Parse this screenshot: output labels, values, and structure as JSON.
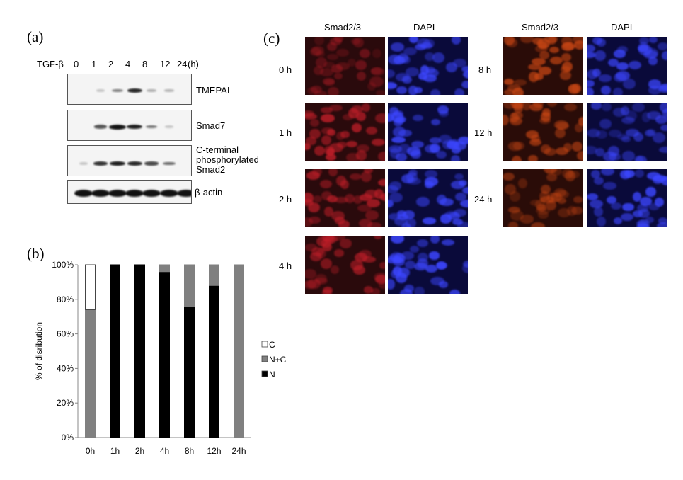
{
  "panel_a": {
    "label": "(a)",
    "treatment_label": "TGF-β",
    "timepoints": [
      "0",
      "1",
      "2",
      "4",
      "8",
      "12",
      "24"
    ],
    "unit": "(h)",
    "blots": [
      {
        "name": "TMEPAI",
        "lines": [
          "TMEPAI"
        ],
        "intensity": [
          0,
          0.05,
          0.35,
          0.75,
          0.15,
          0.12,
          0
        ]
      },
      {
        "name": "Smad7",
        "lines": [
          "Smad7"
        ],
        "intensity": [
          0,
          0.55,
          1.0,
          0.8,
          0.4,
          0.05,
          0
        ]
      },
      {
        "name": "pSmad2",
        "lines": [
          "C-terminal",
          "phosphorylated",
          "Smad2"
        ],
        "intensity": [
          0.05,
          0.7,
          0.8,
          0.75,
          0.6,
          0.45,
          0
        ]
      },
      {
        "name": "beta-actin",
        "lines": [
          "β-actin"
        ],
        "intensity": [
          1,
          1,
          1,
          1,
          1,
          1,
          1
        ]
      }
    ]
  },
  "panel_b": {
    "label": "(b)",
    "chart_data": {
      "type": "bar",
      "stacked": true,
      "categories": [
        "0h",
        "1h",
        "2h",
        "4h",
        "8h",
        "12h",
        "24h"
      ],
      "series": [
        {
          "name": "N",
          "color": "#000000",
          "values": [
            0,
            100,
            100,
            96,
            76,
            88,
            0
          ]
        },
        {
          "name": "N+C",
          "color": "#808080",
          "values": [
            74,
            0,
            0,
            4,
            24,
            12,
            100
          ]
        },
        {
          "name": "C",
          "color": "#ffffff",
          "values": [
            26,
            0,
            0,
            0,
            0,
            0,
            0
          ]
        }
      ],
      "ylabel": "% of disribution",
      "yticks": [
        "0%",
        "20%",
        "40%",
        "60%",
        "80%",
        "100%"
      ],
      "ylim": [
        0,
        100
      ],
      "legend_order": [
        "C",
        "N+C",
        "N"
      ]
    }
  },
  "panel_c": {
    "label": "(c)",
    "column_headers": [
      "Smad2/3",
      "DAPI",
      "Smad2/3",
      "DAPI"
    ],
    "left_rows": [
      "0 h",
      "1 h",
      "2 h",
      "4 h"
    ],
    "right_rows": [
      "8 h",
      "12 h",
      "24 h"
    ]
  }
}
